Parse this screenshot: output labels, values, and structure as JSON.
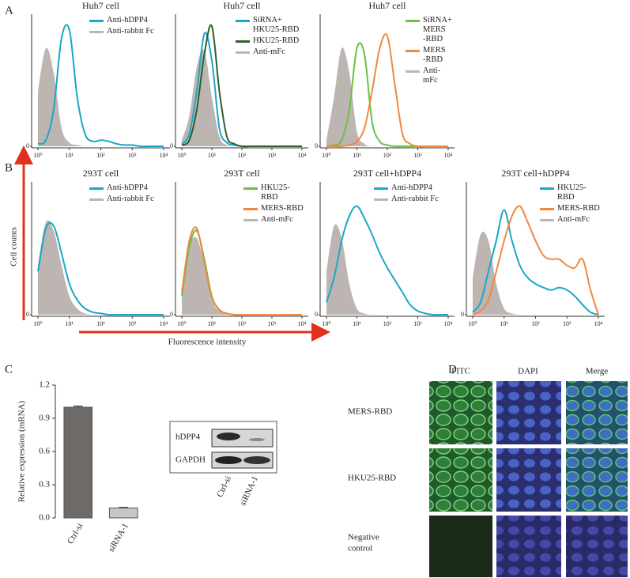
{
  "panel_labels": [
    "A",
    "B",
    "C",
    "D"
  ],
  "axis_texts": {
    "y": "Cell counts",
    "x": "Fluorescence intensity"
  },
  "blot": {
    "rows": [
      "hDPP4",
      "GAPDH"
    ],
    "lanes": [
      "Ctrl-si",
      "siRNA-1"
    ]
  },
  "microscopy": {
    "columns": [
      "FITC",
      "DAPI",
      "Merge"
    ],
    "rows": [
      "MERS-RBD",
      "HKU25-RBD",
      "Negative",
      "control"
    ]
  },
  "chart_data": [
    {
      "type": "line",
      "title": "Huh7 cell",
      "xscale": "log",
      "legend": "upper right",
      "x": [
        1,
        1.78,
        3.16,
        5.62,
        10,
        17.8,
        31.6,
        56.2,
        100,
        178,
        316,
        562,
        1000,
        1778,
        3162,
        5623,
        10000
      ],
      "xlim": [
        1,
        10000
      ],
      "ylim": [
        0,
        100
      ],
      "xticks": [
        {
          "value": 1,
          "label": "10⁰"
        },
        {
          "value": 10,
          "label": "10¹"
        },
        {
          "value": 100,
          "label": "10²"
        },
        {
          "value": 1000,
          "label": "10³"
        },
        {
          "value": 10000,
          "label": "10⁴"
        }
      ],
      "yticks": [
        0
      ],
      "series": [
        {
          "name": "Anti-hDPP4",
          "color": "#1aa7c9",
          "filled": false,
          "values": [
            2,
            5,
            30,
            88,
            95,
            40,
            10,
            4,
            5,
            4,
            2,
            1,
            1,
            0,
            0,
            0,
            0
          ]
        },
        {
          "name": "Anti-rabbit Fc",
          "color": "#bdb5b2",
          "filled": true,
          "values": [
            45,
            80,
            60,
            15,
            3,
            1,
            0,
            0,
            0,
            0,
            0,
            0,
            0,
            0,
            0,
            0,
            0
          ]
        }
      ]
    },
    {
      "type": "line",
      "title": "Huh7 cell",
      "xscale": "log",
      "legend": "upper right",
      "x": [
        1,
        1.78,
        3.16,
        5.62,
        10,
        17.8,
        31.6,
        56.2,
        100,
        178,
        316,
        562,
        1000,
        1778,
        3162,
        5623,
        10000
      ],
      "xlim": [
        1,
        10000
      ],
      "ylim": [
        0,
        100
      ],
      "xticks": [
        {
          "value": 1,
          "label": "10⁰"
        },
        {
          "value": 10,
          "label": "10¹"
        },
        {
          "value": 100,
          "label": "10²"
        },
        {
          "value": 1000,
          "label": "10³"
        },
        {
          "value": 10000,
          "label": "10⁴"
        }
      ],
      "yticks": [
        0
      ],
      "series": [
        {
          "name": "SiRNA+\nHKU25-RBD",
          "color": "#1aa7c9",
          "filled": false,
          "values": [
            2,
            10,
            45,
            92,
            70,
            15,
            3,
            1,
            0,
            0,
            0,
            0,
            0,
            0,
            0,
            0,
            0
          ]
        },
        {
          "name": "HKU25-RBD",
          "color": "#2e5e2e",
          "filled": false,
          "values": [
            1,
            5,
            30,
            75,
            98,
            45,
            8,
            2,
            0,
            0,
            0,
            0,
            0,
            0,
            0,
            0,
            0
          ]
        },
        {
          "name": "Anti-mFc",
          "color": "#bdb5b2",
          "filled": true,
          "values": [
            5,
            25,
            65,
            78,
            40,
            8,
            1,
            0,
            0,
            0,
            0,
            0,
            0,
            0,
            0,
            0,
            0
          ]
        }
      ]
    },
    {
      "type": "line",
      "title": "Huh7 cell",
      "xscale": "log",
      "legend": "upper right",
      "x": [
        1,
        1.78,
        3.16,
        5.62,
        10,
        17.8,
        31.6,
        56.2,
        100,
        178,
        316,
        562,
        1000,
        1778,
        3162,
        5623,
        10000
      ],
      "xlim": [
        1,
        10000
      ],
      "ylim": [
        0,
        100
      ],
      "xticks": [
        {
          "value": 1,
          "label": "10⁰"
        },
        {
          "value": 10,
          "label": "10¹"
        },
        {
          "value": 100,
          "label": "10²"
        },
        {
          "value": 1000,
          "label": "10³"
        },
        {
          "value": 10000,
          "label": "10⁴"
        }
      ],
      "yticks": [
        0
      ],
      "series": [
        {
          "name": "SiRNA+\nMERS\n-RBD",
          "color": "#6abf45",
          "filled": false,
          "values": [
            0,
            1,
            5,
            30,
            80,
            75,
            20,
            4,
            1,
            0,
            0,
            0,
            0,
            0,
            0,
            0,
            0
          ]
        },
        {
          "name": "MERS\n-RBD",
          "color": "#f0883e",
          "filled": false,
          "values": [
            0,
            0,
            0,
            1,
            4,
            15,
            45,
            80,
            90,
            50,
            10,
            2,
            0,
            0,
            0,
            0,
            0
          ]
        },
        {
          "name": "Anti-mFc",
          "color": "#bdb5b2",
          "filled": true,
          "values": [
            5,
            40,
            80,
            60,
            12,
            2,
            0,
            0,
            0,
            0,
            0,
            0,
            0,
            0,
            0,
            0,
            0
          ]
        }
      ]
    },
    {
      "type": "line",
      "title": "293T cell",
      "xscale": "log",
      "legend": "upper right",
      "x": [
        1,
        1.78,
        3.16,
        5.62,
        10,
        17.8,
        31.6,
        56.2,
        100,
        178,
        316,
        562,
        1000,
        1778,
        3162,
        5623,
        10000
      ],
      "xlim": [
        1,
        10000
      ],
      "ylim": [
        0,
        100
      ],
      "xticks": [
        {
          "value": 1,
          "label": "10⁰"
        },
        {
          "value": 10,
          "label": "10¹"
        },
        {
          "value": 100,
          "label": "10²"
        },
        {
          "value": 1000,
          "label": "10³"
        },
        {
          "value": 10000,
          "label": "10⁴"
        }
      ],
      "yticks": [
        0
      ],
      "series": [
        {
          "name": "Anti-hDPP4",
          "color": "#1aa7c9",
          "filled": false,
          "values": [
            35,
            70,
            72,
            50,
            25,
            12,
            5,
            2,
            1,
            0,
            0,
            0,
            0,
            0,
            0,
            0,
            0
          ]
        },
        {
          "name": "Anti-rabbit Fc",
          "color": "#bdb5b2",
          "filled": true,
          "values": [
            40,
            75,
            68,
            40,
            15,
            5,
            1,
            0,
            0,
            0,
            0,
            0,
            0,
            0,
            0,
            0,
            0
          ]
        }
      ]
    },
    {
      "type": "line",
      "title": "293T cell",
      "xscale": "log",
      "legend": "upper right",
      "x": [
        1,
        1.78,
        3.16,
        5.62,
        10,
        17.8,
        31.6,
        56.2,
        100,
        178,
        316,
        562,
        1000,
        1778,
        3162,
        5623,
        10000
      ],
      "xlim": [
        1,
        10000
      ],
      "ylim": [
        0,
        100
      ],
      "xticks": [
        {
          "value": 1,
          "label": "10⁰"
        },
        {
          "value": 10,
          "label": "10¹"
        },
        {
          "value": 100,
          "label": "10²"
        },
        {
          "value": 1000,
          "label": "10³"
        },
        {
          "value": 10000,
          "label": "10⁴"
        }
      ],
      "yticks": [
        0
      ],
      "series": [
        {
          "name": "HKU25-RBD",
          "color": "#6abf45",
          "filled": false,
          "values": [
            15,
            55,
            68,
            45,
            15,
            4,
            1,
            0,
            0,
            0,
            0,
            0,
            0,
            0,
            0,
            0,
            0
          ]
        },
        {
          "name": "MERS-RBD",
          "color": "#f0883e",
          "filled": false,
          "values": [
            18,
            60,
            70,
            42,
            14,
            4,
            1,
            0,
            0,
            0,
            0,
            0,
            0,
            0,
            0,
            0,
            0
          ]
        },
        {
          "name": "Anti-mFc",
          "color": "#bdb5b2",
          "filled": true,
          "values": [
            15,
            55,
            62,
            40,
            12,
            3,
            1,
            0,
            0,
            0,
            0,
            0,
            0,
            0,
            0,
            0,
            0
          ]
        }
      ]
    },
    {
      "type": "line",
      "title": "293T cell+hDPP4",
      "xscale": "log",
      "legend": "upper right",
      "x": [
        1,
        1.78,
        3.16,
        5.62,
        10,
        17.8,
        31.6,
        56.2,
        100,
        178,
        316,
        562,
        1000,
        1778,
        3162,
        5623,
        10000
      ],
      "xlim": [
        1,
        10000
      ],
      "ylim": [
        0,
        100
      ],
      "xticks": [
        {
          "value": 1,
          "label": "10⁰"
        },
        {
          "value": 10,
          "label": "10¹"
        },
        {
          "value": 100,
          "label": "10²"
        },
        {
          "value": 1000,
          "label": "10³"
        },
        {
          "value": 10000,
          "label": "10⁴"
        }
      ],
      "yticks": [
        0
      ],
      "series": [
        {
          "name": "Anti-hDPP4",
          "color": "#1aa7c9",
          "filled": false,
          "values": [
            10,
            30,
            60,
            80,
            88,
            78,
            65,
            50,
            38,
            28,
            18,
            8,
            3,
            1,
            0,
            0,
            0
          ]
        },
        {
          "name": "Anti-rabbit Fc",
          "color": "#bdb5b2",
          "filled": true,
          "values": [
            35,
            72,
            62,
            25,
            5,
            1,
            0,
            0,
            0,
            0,
            0,
            0,
            0,
            0,
            0,
            0,
            0
          ]
        }
      ]
    },
    {
      "type": "line",
      "title": "293T cell+hDPP4",
      "xscale": "log",
      "legend": "upper right",
      "x": [
        1,
        1.78,
        3.16,
        5.62,
        10,
        17.8,
        31.6,
        56.2,
        100,
        178,
        316,
        562,
        1000,
        1778,
        3162,
        5623,
        10000
      ],
      "xlim": [
        1,
        10000
      ],
      "ylim": [
        0,
        100
      ],
      "xticks": [
        {
          "value": 1,
          "label": "10⁰"
        },
        {
          "value": 10,
          "label": "10¹"
        },
        {
          "value": 100,
          "label": "10²"
        },
        {
          "value": 1000,
          "label": "10³"
        },
        {
          "value": 10000,
          "label": "10⁴"
        }
      ],
      "yticks": [
        0
      ],
      "series": [
        {
          "name": "HKU25-RBD",
          "color": "#1aa7c9",
          "filled": false,
          "values": [
            2,
            10,
            35,
            60,
            85,
            60,
            40,
            30,
            25,
            22,
            20,
            22,
            20,
            15,
            8,
            2,
            0
          ]
        },
        {
          "name": "MERS-RBD",
          "color": "#f0883e",
          "filled": false,
          "values": [
            0,
            3,
            12,
            35,
            60,
            80,
            88,
            75,
            60,
            48,
            45,
            45,
            40,
            38,
            45,
            20,
            0
          ]
        },
        {
          "name": "Anti-mFc",
          "color": "#bdb5b2",
          "filled": true,
          "values": [
            30,
            65,
            60,
            25,
            5,
            1,
            0,
            0,
            0,
            0,
            0,
            0,
            0,
            0,
            0,
            0,
            0
          ]
        }
      ]
    },
    {
      "type": "bar",
      "ylabel": "Relative expression (mRNA)",
      "categories": [
        "Ctrl-si",
        "siRNA-1"
      ],
      "values": [
        1.0,
        0.09
      ],
      "errors": [
        0.01,
        0.005
      ],
      "colors": [
        "#6e6a68",
        "#c9c5c3"
      ],
      "ylim": [
        0,
        1.2
      ],
      "yticks": [
        {
          "value": 0,
          "label": "0.0"
        },
        0.3,
        0.6,
        0.9,
        1.2
      ]
    }
  ]
}
